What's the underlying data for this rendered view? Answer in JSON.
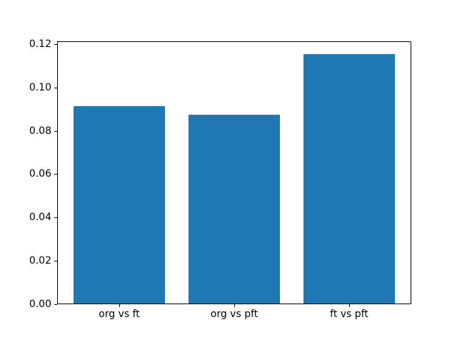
{
  "figure": {
    "background_color": "#ffffff",
    "frame_color": "#000000",
    "tick_color": "#000000",
    "text_color": "#000000"
  },
  "chart_data": {
    "type": "bar",
    "title": "",
    "xlabel": "",
    "ylabel": "",
    "categories": [
      "org vs ft",
      "org vs pft",
      "ft vs pft"
    ],
    "values": [
      0.0915,
      0.0875,
      0.1153
    ],
    "bar_color": "#1f77b4",
    "bar_width": 0.8,
    "xlim": [
      -0.54,
      2.54
    ],
    "ylim": [
      0,
      0.1213
    ],
    "yticks": [
      0.0,
      0.02,
      0.04,
      0.06,
      0.08,
      0.1,
      0.12
    ],
    "ytick_labels": [
      "0.00",
      "0.02",
      "0.04",
      "0.06",
      "0.08",
      "0.10",
      "0.12"
    ],
    "grid": false,
    "legend": null
  }
}
